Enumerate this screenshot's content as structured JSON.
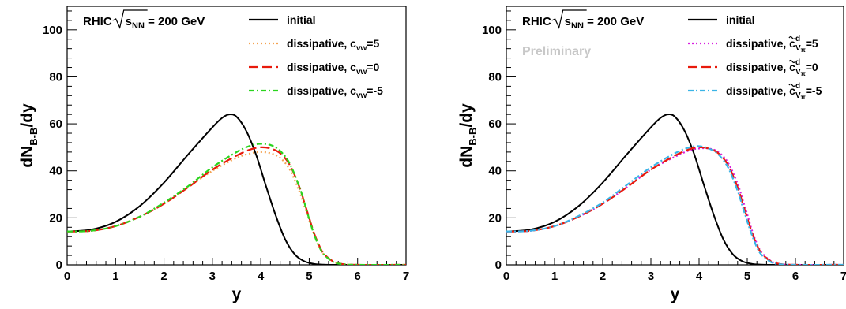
{
  "chart_data": [
    {
      "type": "line",
      "xlabel": "y",
      "ylabel": "dN",
      "ylabel_sub": "B-B",
      "ylabel_tail": "/dy",
      "xlim": [
        0,
        7
      ],
      "ylim": [
        0,
        110
      ],
      "xticks": [
        "0",
        "1",
        "2",
        "3",
        "4",
        "5",
        "6",
        "7"
      ],
      "yticks": [
        "0",
        "20",
        "40",
        "60",
        "80",
        "100"
      ],
      "grid": false,
      "legend": "top-right",
      "system_label": {
        "main": "RHIC",
        "sqrt_var": "s",
        "sqrt_sub": "NN",
        "tail": " = 200 GeV"
      },
      "preliminary": "",
      "series": [
        {
          "legend_main": "initial",
          "legend_sub": "",
          "legend_sup": "",
          "legend_tilde": false,
          "legend_tail": "",
          "color": "#000000",
          "dash": "solid",
          "x": [
            0,
            0.5,
            1,
            1.5,
            2,
            2.5,
            3,
            3.2,
            3.35,
            3.5,
            3.7,
            3.9,
            4.1,
            4.3,
            4.5,
            4.7,
            4.9,
            5.1,
            5.3,
            5.5,
            5.7,
            6,
            7
          ],
          "y": [
            14.2,
            15,
            18.3,
            25,
            35,
            47,
            58.5,
            62.5,
            64,
            63,
            57,
            47,
            34,
            21.5,
            11,
            4.5,
            1.5,
            0.4,
            0.1,
            0,
            0,
            0,
            0
          ]
        },
        {
          "legend_main": "dissipative, c",
          "legend_sub": "vw",
          "legend_sup": "",
          "legend_tilde": false,
          "legend_tail": "=5",
          "color": "#f4a250",
          "dash": "dotted",
          "x": [
            0,
            0.5,
            1,
            1.5,
            2,
            2.5,
            3,
            3.5,
            3.8,
            4,
            4.2,
            4.4,
            4.6,
            4.8,
            4.9,
            5,
            5.1,
            5.2,
            5.3,
            5.5,
            5.7,
            6,
            7
          ],
          "y": [
            14.2,
            14.5,
            16.5,
            20.5,
            26,
            33,
            40,
            45.5,
            47.5,
            48,
            47.5,
            45.5,
            40.5,
            31,
            25,
            19,
            13,
            8,
            4.5,
            1.3,
            0.3,
            0,
            0
          ]
        },
        {
          "legend_main": "dissipative, c",
          "legend_sub": "vw",
          "legend_sup": "",
          "legend_tilde": false,
          "legend_tail": "=0",
          "color": "#e81a0c",
          "dash": "longdash",
          "x": [
            0,
            0.5,
            1,
            1.5,
            2,
            2.5,
            3,
            3.5,
            3.8,
            4,
            4.2,
            4.4,
            4.6,
            4.8,
            4.9,
            5,
            5.1,
            5.2,
            5.3,
            5.5,
            5.7,
            6,
            7
          ],
          "y": [
            14.2,
            14.5,
            16.5,
            20.5,
            26,
            33,
            40.5,
            46.5,
            49.2,
            50,
            49.5,
            47.5,
            42.5,
            33,
            26.5,
            20,
            13.5,
            8.5,
            4.8,
            1.4,
            0.3,
            0,
            0
          ]
        },
        {
          "legend_main": "dissipative, c",
          "legend_sub": "vw",
          "legend_sup": "",
          "legend_tilde": false,
          "legend_tail": "=-5",
          "color": "#2ad41e",
          "dash": "dashdot",
          "x": [
            0,
            0.5,
            1,
            1.5,
            2,
            2.5,
            3,
            3.5,
            3.8,
            4,
            4.2,
            4.4,
            4.6,
            4.8,
            4.9,
            5,
            5.1,
            5.2,
            5.3,
            5.5,
            5.7,
            6,
            7
          ],
          "y": [
            14.2,
            14.5,
            16.5,
            20.5,
            26.5,
            33.5,
            41.5,
            48,
            50.8,
            51.5,
            51,
            48.5,
            43,
            33,
            26.5,
            19.5,
            13,
            8,
            4.5,
            1.2,
            0.3,
            0,
            0
          ]
        }
      ]
    },
    {
      "type": "line",
      "xlabel": "y",
      "ylabel": "dN",
      "ylabel_sub": "B-B",
      "ylabel_tail": "/dy",
      "xlim": [
        0,
        7
      ],
      "ylim": [
        0,
        110
      ],
      "xticks": [
        "0",
        "1",
        "2",
        "3",
        "4",
        "5",
        "6",
        "7"
      ],
      "yticks": [
        "0",
        "20",
        "40",
        "60",
        "80",
        "100"
      ],
      "grid": false,
      "legend": "top-right",
      "system_label": {
        "main": "RHIC",
        "sqrt_var": "s",
        "sqrt_sub": "NN",
        "tail": " = 200 GeV"
      },
      "preliminary": "Preliminary",
      "preliminary_color": "#c8c8c8",
      "series": [
        {
          "legend_main": "initial",
          "legend_sub": "",
          "legend_sup": "",
          "legend_tilde": false,
          "legend_tail": "",
          "color": "#000000",
          "dash": "solid",
          "x": [
            0,
            0.5,
            1,
            1.5,
            2,
            2.5,
            3,
            3.2,
            3.35,
            3.5,
            3.7,
            3.9,
            4.1,
            4.3,
            4.5,
            4.7,
            4.9,
            5.1,
            5.3,
            5.5,
            5.7,
            6,
            7
          ],
          "y": [
            14.2,
            15,
            18.3,
            25,
            35,
            47,
            58.5,
            62.5,
            64,
            63,
            57,
            47,
            34,
            21.5,
            11,
            4.5,
            1.5,
            0.4,
            0.1,
            0,
            0,
            0,
            0
          ]
        },
        {
          "legend_main": "dissipative, c",
          "legend_sub": "V",
          "legend_subsub": "π",
          "legend_sup": "d",
          "legend_tilde": true,
          "legend_tail": "=5",
          "color": "#d81ee0",
          "dash": "dotted",
          "x": [
            0,
            0.5,
            1,
            1.5,
            2,
            2.5,
            3,
            3.5,
            3.8,
            4,
            4.2,
            4.4,
            4.6,
            4.8,
            4.9,
            5,
            5.1,
            5.2,
            5.3,
            5.5,
            5.7,
            6,
            7
          ],
          "y": [
            14.2,
            14.5,
            16.5,
            20.5,
            26,
            33,
            40.5,
            46,
            48.7,
            49.5,
            49.5,
            48,
            43.5,
            34.5,
            28,
            21.5,
            14.5,
            9,
            5.2,
            1.5,
            0.3,
            0,
            0
          ]
        },
        {
          "legend_main": "dissipative, c",
          "legend_sub": "V",
          "legend_subsub": "π",
          "legend_sup": "d",
          "legend_tilde": true,
          "legend_tail": "=0",
          "color": "#e81a0c",
          "dash": "longdash",
          "x": [
            0,
            0.5,
            1,
            1.5,
            2,
            2.5,
            3,
            3.5,
            3.8,
            4,
            4.2,
            4.4,
            4.6,
            4.8,
            4.9,
            5,
            5.1,
            5.2,
            5.3,
            5.5,
            5.7,
            6,
            7
          ],
          "y": [
            14.2,
            14.5,
            16.5,
            20.5,
            26,
            33,
            40.5,
            46.5,
            49.2,
            50,
            49.5,
            47.5,
            42.5,
            33,
            26.5,
            20,
            13.5,
            8.5,
            4.8,
            1.4,
            0.3,
            0,
            0
          ]
        },
        {
          "legend_main": "dissipative, c",
          "legend_sub": "V",
          "legend_subsub": "π",
          "legend_sup": "d",
          "legend_tilde": true,
          "legend_tail": "=-5",
          "color": "#3ab4e6",
          "dash": "dashdot",
          "x": [
            0,
            0.5,
            1,
            1.5,
            2,
            2.5,
            3,
            3.5,
            3.8,
            4,
            4.2,
            4.4,
            4.6,
            4.8,
            4.9,
            5,
            5.1,
            5.2,
            5.3,
            5.5,
            5.7,
            6,
            7
          ],
          "y": [
            14.2,
            14.5,
            16.5,
            20.8,
            26.5,
            34,
            41.5,
            47.5,
            50,
            50.5,
            49.5,
            47,
            41.5,
            31.5,
            25,
            18.5,
            12.5,
            7.5,
            4.2,
            1.1,
            0.2,
            0,
            0
          ]
        }
      ]
    }
  ]
}
